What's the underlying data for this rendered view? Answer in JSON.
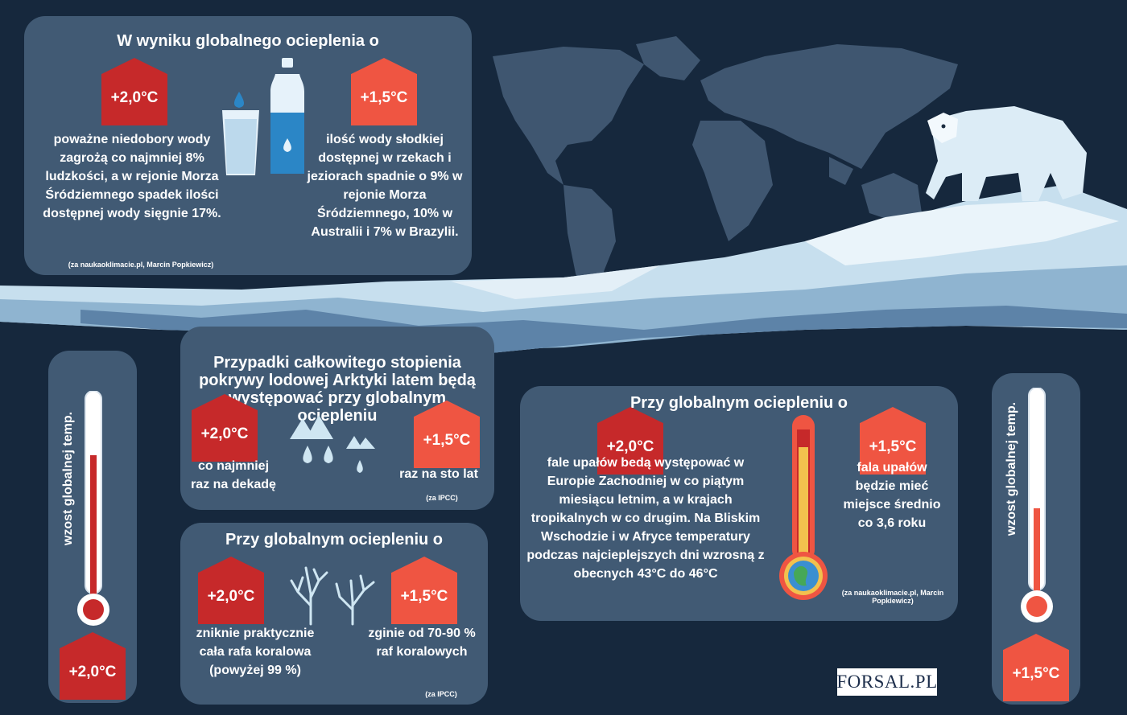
{
  "panel_top": {
    "title": "W wyniku globalnego ocieplenia o",
    "badge_left": "+2,0°C",
    "badge_right": "+1,5°C",
    "text_left": "poważne niedobory wody zagrożą co najmniej 8% ludzkości, a w rejonie Morza Śródziemnego spadek ilości dostępnej wody sięgnie 17%.",
    "text_right": "ilość wody słodkiej dostępnej w rzekach i jeziorach spadnie o 9% w rejonie Morza Śródziemnego, 10% w Australii i 7% w Brazylii.",
    "source": "(za naukaoklimacie.pl, Marcin Popkiewicz)"
  },
  "panel_arctic": {
    "title": "Przypadki całkowitego stopienia pokrywy lodowej Arktyki latem będą występować przy globalnym ociepleniu",
    "badge_left": "+2,0°C",
    "badge_right": "+1,5°C",
    "text_left": "co najmniej raz na dekadę",
    "text_right": "raz na sto lat",
    "source": "(za IPCC)"
  },
  "panel_coral": {
    "title": "Przy globalnym ociepleniu o",
    "badge_left": "+2,0°C",
    "badge_right": "+1,5°C",
    "text_left": "zniknie praktycznie cała rafa koralowa (powyżej 99 %)",
    "text_right": "zginie od 70-90 % raf koralowych",
    "source": "(za IPCC)"
  },
  "panel_heat": {
    "title": "Przy globalnym ociepleniu o",
    "badge_left": "+2,0°C",
    "badge_right": "+1,5°C",
    "text_left": "fale upałów bedą występować w Europie Zachodniej w co piątym miesiącu letnim, a w krajach tropikalnych w co drugim. Na Bliskim Wschodzie i w Afryce temperatury podczas najcieplejszych dni wzrosną z obecnych 43°C do 46°C",
    "text_right": "fala upałów będzie mieć miejsce średnio co 3,6 roku",
    "source": "(za naukaoklimacie.pl, Marcin Popkiewicz)"
  },
  "side_left": {
    "label": "wzost globalnej temp.",
    "badge": "+2,0°C"
  },
  "side_right": {
    "label": "wzost globalnej temp.",
    "badge": "+1,5°C"
  },
  "logo": "FORSAL.PL",
  "colors": {
    "background": "#16283d",
    "panel": "#415a74",
    "badge_dark": "#c6292a",
    "badge_light": "#ef5542",
    "ice": "#cfe6f2"
  }
}
